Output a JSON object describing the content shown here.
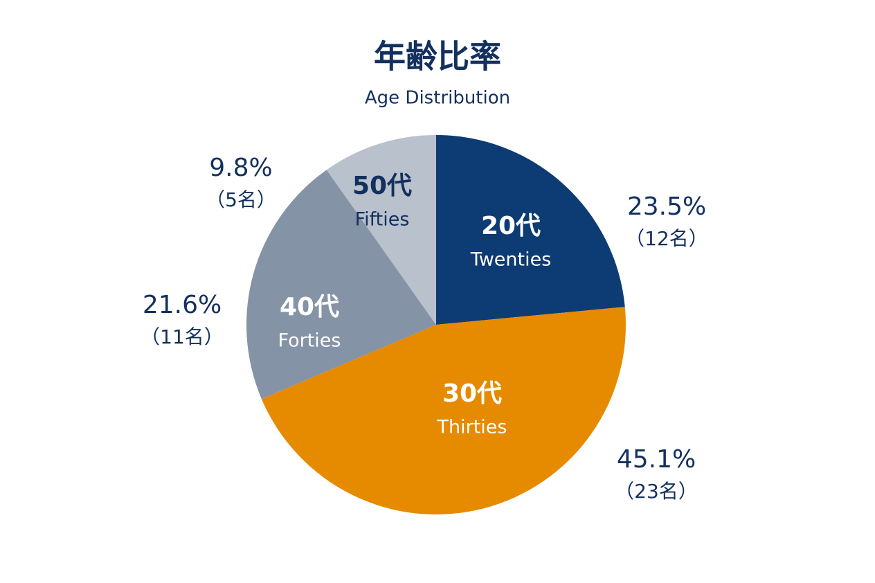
{
  "chart_data": {
    "type": "pie",
    "title": "年齢比率",
    "subtitle": "Age Distribution",
    "categories": [
      "20代",
      "30代",
      "40代",
      "50代"
    ],
    "categories_en": [
      "Twenties",
      "Thirties",
      "Forties",
      "Fifties"
    ],
    "values": [
      23.5,
      45.1,
      21.6,
      9.8
    ],
    "value_labels": [
      "23.5%",
      "45.1%",
      "21.6%",
      "9.8%"
    ],
    "counts": [
      12,
      23,
      11,
      5
    ],
    "count_labels": [
      "（12名）",
      "（23名）",
      "（11名）",
      "（5名）"
    ],
    "colors": [
      "#0d3b73",
      "#e68a00",
      "#8593a6",
      "#b8c1cc"
    ]
  }
}
